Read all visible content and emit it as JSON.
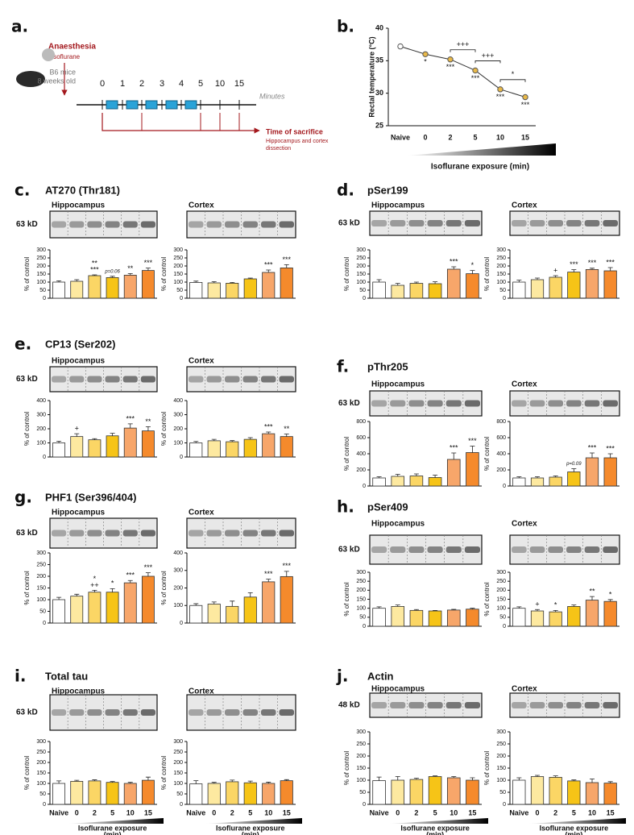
{
  "schematic": {
    "panel": "a.",
    "anaesthesia": "Anaesthesia",
    "agent": "Isoflurane",
    "strain": "B6 mice",
    "age": "8 weeks old",
    "timepoints": [
      "0",
      "1",
      "2",
      "3",
      "4",
      "5",
      "10",
      "15"
    ],
    "unit": "Minutes",
    "sacrifice": "Time of sacrifice",
    "dissection": [
      "Hippocampus and cortex",
      "dissection"
    ]
  },
  "chart_data": [
    {
      "type": "line",
      "panel": "b.",
      "categories": [
        "Naive",
        "0",
        "2",
        "5",
        "10",
        "15"
      ],
      "values": [
        37.2,
        36.0,
        35.2,
        33.5,
        30.6,
        29.4
      ],
      "annotations": [
        null,
        "*",
        "***",
        "***",
        "***",
        "***"
      ],
      "brackets": [
        {
          "from": "2",
          "to": "5",
          "label": "+++"
        },
        {
          "from": "5",
          "to": "10",
          "label": "+++"
        },
        {
          "from": "10",
          "to": "15",
          "label": "*"
        }
      ],
      "ylim": [
        25,
        40
      ],
      "yticks": [
        25,
        30,
        35,
        40
      ],
      "ylabel": "Rectal temperature (°C)",
      "xlabel": "Isoflurane exposure (min)",
      "color": "#e9b949"
    },
    {
      "type": "bar",
      "panel": "c.",
      "title": "AT270 (Thr181)",
      "subtitle": "Hippocampus",
      "blot_label": "63 kD",
      "ylabel": "% of control",
      "values": [
        100,
        105,
        140,
        128,
        143,
        172
      ],
      "errors": [
        8,
        10,
        5,
        8,
        10,
        15
      ],
      "annotations": [
        null,
        null,
        [
          "**",
          "***"
        ],
        [
          "p=0.06"
        ],
        [
          "**"
        ],
        [
          "***"
        ]
      ],
      "colors": [
        "#ffffff",
        "#fde9a0",
        "#fbd665",
        "#f6c417",
        "#f7a66a",
        "#f58a2c"
      ],
      "ylim": [
        0,
        300
      ],
      "yticks": [
        0,
        50,
        100,
        150,
        200,
        250,
        300
      ]
    },
    {
      "type": "bar",
      "subtitle": "Cortex",
      "ylabel": "% of control",
      "values": [
        98,
        95,
        93,
        120,
        160,
        188
      ],
      "errors": [
        8,
        8,
        5,
        5,
        15,
        20
      ],
      "annotations": [
        null,
        null,
        null,
        null,
        [
          "***"
        ],
        [
          "***"
        ]
      ],
      "colors": [
        "#ffffff",
        "#fde9a0",
        "#fbd665",
        "#f6c417",
        "#f7a66a",
        "#f58a2c"
      ],
      "ylim": [
        0,
        300
      ],
      "yticks": [
        0,
        50,
        100,
        150,
        200,
        250,
        300
      ]
    },
    {
      "type": "bar",
      "panel": "d.",
      "title": "pSer199",
      "subtitle": "Hippocampus",
      "blot_label": "63 kD",
      "ylabel": "% of control",
      "values": [
        100,
        80,
        92,
        90,
        180,
        152
      ],
      "errors": [
        15,
        12,
        8,
        12,
        15,
        20
      ],
      "annotations": [
        null,
        null,
        null,
        null,
        [
          "***"
        ],
        [
          "*"
        ]
      ],
      "colors": [
        "#ffffff",
        "#fde9a0",
        "#fbd665",
        "#f6c417",
        "#f7a66a",
        "#f58a2c"
      ],
      "ylim": [
        0,
        300
      ],
      "yticks": [
        0,
        50,
        100,
        150,
        200,
        250,
        300
      ]
    },
    {
      "type": "bar",
      "subtitle": "Cortex",
      "ylabel": "% of control",
      "values": [
        100,
        115,
        130,
        162,
        178,
        170
      ],
      "errors": [
        12,
        10,
        10,
        15,
        8,
        20
      ],
      "annotations": [
        null,
        null,
        [
          "+"
        ],
        [
          "***"
        ],
        [
          "***"
        ],
        [
          "***"
        ]
      ],
      "colors": [
        "#ffffff",
        "#fde9a0",
        "#fbd665",
        "#f6c417",
        "#f7a66a",
        "#f58a2c"
      ],
      "ylim": [
        0,
        300
      ],
      "yticks": [
        0,
        50,
        100,
        150,
        200,
        250,
        300
      ]
    },
    {
      "type": "bar",
      "panel": "e.",
      "title": "CP13 (Ser202)",
      "subtitle": "Hippocampus",
      "blot_label": "63 kD",
      "ylabel": "% of control",
      "values": [
        100,
        145,
        122,
        150,
        205,
        185
      ],
      "errors": [
        12,
        20,
        8,
        18,
        30,
        30
      ],
      "annotations": [
        null,
        [
          "+"
        ],
        null,
        null,
        [
          "***"
        ],
        [
          "**"
        ]
      ],
      "colors": [
        "#ffffff",
        "#fde9a0",
        "#fbd665",
        "#f6c417",
        "#f7a66a",
        "#f58a2c"
      ],
      "ylim": [
        0,
        400
      ],
      "yticks": [
        0,
        100,
        200,
        300,
        400
      ]
    },
    {
      "type": "bar",
      "subtitle": "Cortex",
      "ylabel": "% of control",
      "values": [
        100,
        115,
        108,
        125,
        165,
        145
      ],
      "errors": [
        10,
        10,
        8,
        12,
        12,
        18
      ],
      "annotations": [
        null,
        null,
        null,
        null,
        [
          "***"
        ],
        [
          "**"
        ]
      ],
      "colors": [
        "#ffffff",
        "#fde9a0",
        "#fbd665",
        "#f6c417",
        "#f7a66a",
        "#f58a2c"
      ],
      "ylim": [
        0,
        400
      ],
      "yticks": [
        0,
        100,
        200,
        300,
        400
      ]
    },
    {
      "type": "bar",
      "panel": "f.",
      "title": "pThr205",
      "subtitle": "Hippocampus",
      "blot_label": "63 kD",
      "ylabel": "% of control",
      "values": [
        100,
        120,
        125,
        105,
        330,
        415
      ],
      "errors": [
        15,
        25,
        25,
        30,
        80,
        80
      ],
      "annotations": [
        null,
        null,
        null,
        null,
        [
          "***"
        ],
        [
          "***"
        ]
      ],
      "colors": [
        "#ffffff",
        "#fde9a0",
        "#fbd665",
        "#f6c417",
        "#f7a66a",
        "#f58a2c"
      ],
      "ylim": [
        0,
        800
      ],
      "yticks": [
        0,
        200,
        400,
        600,
        800
      ]
    },
    {
      "type": "bar",
      "subtitle": "Cortex",
      "ylabel": "% of control",
      "values": [
        100,
        100,
        110,
        175,
        350,
        350
      ],
      "errors": [
        15,
        15,
        15,
        40,
        60,
        50
      ],
      "annotations": [
        null,
        null,
        null,
        [
          "p=0.09"
        ],
        [
          "***"
        ],
        [
          "***"
        ]
      ],
      "colors": [
        "#ffffff",
        "#fde9a0",
        "#fbd665",
        "#f6c417",
        "#f7a66a",
        "#f58a2c"
      ],
      "ylim": [
        0,
        800
      ],
      "yticks": [
        0,
        200,
        400,
        600,
        800
      ]
    },
    {
      "type": "bar",
      "panel": "g.",
      "title": "PHF1 (Ser396/404)",
      "subtitle": "Hippocampus",
      "blot_label": "63 kD",
      "ylabel": "% of control",
      "values": [
        100,
        115,
        132,
        132,
        172,
        200
      ],
      "errors": [
        10,
        8,
        8,
        15,
        10,
        15
      ],
      "annotations": [
        null,
        null,
        [
          "*",
          "++"
        ],
        [
          "*"
        ],
        [
          "***"
        ],
        [
          "***"
        ]
      ],
      "colors": [
        "#ffffff",
        "#fde9a0",
        "#fbd665",
        "#f6c417",
        "#f7a66a",
        "#f58a2c"
      ],
      "ylim": [
        0,
        300
      ],
      "yticks": [
        0,
        50,
        100,
        150,
        200,
        250,
        300
      ]
    },
    {
      "type": "bar",
      "subtitle": "Cortex",
      "ylabel": "% of control",
      "values": [
        100,
        108,
        95,
        148,
        235,
        265
      ],
      "errors": [
        10,
        12,
        30,
        25,
        15,
        30
      ],
      "annotations": [
        null,
        null,
        null,
        null,
        [
          "***"
        ],
        [
          "***"
        ]
      ],
      "colors": [
        "#ffffff",
        "#fde9a0",
        "#fbd665",
        "#f6c417",
        "#f7a66a",
        "#f58a2c"
      ],
      "ylim": [
        0,
        400
      ],
      "yticks": [
        0,
        100,
        200,
        300,
        400
      ]
    },
    {
      "type": "bar",
      "panel": "h.",
      "title": "pSer409",
      "subtitle": "Hippocampus",
      "blot_label": "63 kD",
      "ylabel": "% of control",
      "values": [
        100,
        110,
        88,
        85,
        90,
        95
      ],
      "errors": [
        8,
        8,
        5,
        3,
        4,
        5
      ],
      "annotations": [
        null,
        null,
        null,
        null,
        null,
        null
      ],
      "colors": [
        "#ffffff",
        "#fde9a0",
        "#fbd665",
        "#f6c417",
        "#f7a66a",
        "#f58a2c"
      ],
      "ylim": [
        0,
        300
      ],
      "yticks": [
        0,
        50,
        100,
        150,
        200,
        250,
        300
      ]
    },
    {
      "type": "bar",
      "subtitle": "Cortex",
      "ylabel": "% of control",
      "values": [
        100,
        85,
        80,
        110,
        145,
        138
      ],
      "errors": [
        8,
        8,
        8,
        8,
        20,
        10
      ],
      "annotations": [
        null,
        [
          "+"
        ],
        [
          "*"
        ],
        null,
        [
          "**"
        ],
        [
          "*"
        ]
      ],
      "colors": [
        "#ffffff",
        "#fde9a0",
        "#fbd665",
        "#f6c417",
        "#f7a66a",
        "#f58a2c"
      ],
      "ylim": [
        0,
        300
      ],
      "yticks": [
        0,
        50,
        100,
        150,
        200,
        250,
        300
      ]
    },
    {
      "type": "bar",
      "panel": "i.",
      "title": "Total tau",
      "subtitle": "Hippocampus",
      "blot_label": "63 kD",
      "ylabel": "% of control",
      "categories": [
        "Naive",
        "0",
        "2",
        "5",
        "10",
        "15"
      ],
      "xlabel": [
        "Isoflurane exposure",
        "(min)"
      ],
      "values": [
        100,
        110,
        112,
        105,
        100,
        115
      ],
      "errors": [
        12,
        5,
        5,
        4,
        5,
        15
      ],
      "annotations": [
        null,
        null,
        null,
        null,
        null,
        null
      ],
      "colors": [
        "#ffffff",
        "#fde9a0",
        "#fbd665",
        "#f6c417",
        "#f7a66a",
        "#f58a2c"
      ],
      "ylim": [
        0,
        300
      ],
      "yticks": [
        0,
        50,
        100,
        150,
        200,
        250,
        300
      ]
    },
    {
      "type": "bar",
      "subtitle": "Cortex",
      "ylabel": "% of control",
      "categories": [
        "Naive",
        "0",
        "2",
        "5",
        "10",
        "15"
      ],
      "xlabel": [
        "Isoflurane exposure",
        "(min)"
      ],
      "values": [
        98,
        100,
        108,
        103,
        100,
        113
      ],
      "errors": [
        15,
        5,
        8,
        8,
        6,
        5
      ],
      "annotations": [
        null,
        null,
        null,
        null,
        null,
        null
      ],
      "colors": [
        "#ffffff",
        "#fde9a0",
        "#fbd665",
        "#f6c417",
        "#f7a66a",
        "#f58a2c"
      ],
      "ylim": [
        0,
        300
      ],
      "yticks": [
        0,
        50,
        100,
        150,
        200,
        250,
        300
      ]
    },
    {
      "type": "bar",
      "panel": "j.",
      "title": "Actin",
      "subtitle": "Hippocampus",
      "blot_label": "48 kD",
      "ylabel": "% of control",
      "categories": [
        "Naive",
        "0",
        "2",
        "5",
        "10",
        "15"
      ],
      "xlabel": [
        "Isoflurane exposure",
        "(min)"
      ],
      "values": [
        98,
        100,
        103,
        115,
        110,
        100
      ],
      "errors": [
        15,
        15,
        5,
        3,
        5,
        10
      ],
      "annotations": [
        null,
        null,
        null,
        null,
        null,
        null
      ],
      "colors": [
        "#ffffff",
        "#fde9a0",
        "#fbd665",
        "#f6c417",
        "#f7a66a",
        "#f58a2c"
      ],
      "ylim": [
        0,
        300
      ],
      "yticks": [
        0,
        50,
        100,
        150,
        200,
        250,
        300
      ]
    },
    {
      "type": "bar",
      "subtitle": "Cortex",
      "ylabel": "% of control",
      "categories": [
        "Naive",
        "0",
        "2",
        "5",
        "10",
        "15"
      ],
      "xlabel": [
        "Isoflurane exposure",
        "(min)"
      ],
      "values": [
        100,
        115,
        112,
        97,
        90,
        88
      ],
      "errors": [
        10,
        5,
        6,
        4,
        15,
        6
      ],
      "annotations": [
        null,
        null,
        null,
        null,
        null,
        null
      ],
      "colors": [
        "#ffffff",
        "#fde9a0",
        "#fbd665",
        "#f6c417",
        "#f7a66a",
        "#f58a2c"
      ],
      "ylim": [
        0,
        300
      ],
      "yticks": [
        0,
        50,
        100,
        150,
        200,
        250,
        300
      ]
    }
  ]
}
